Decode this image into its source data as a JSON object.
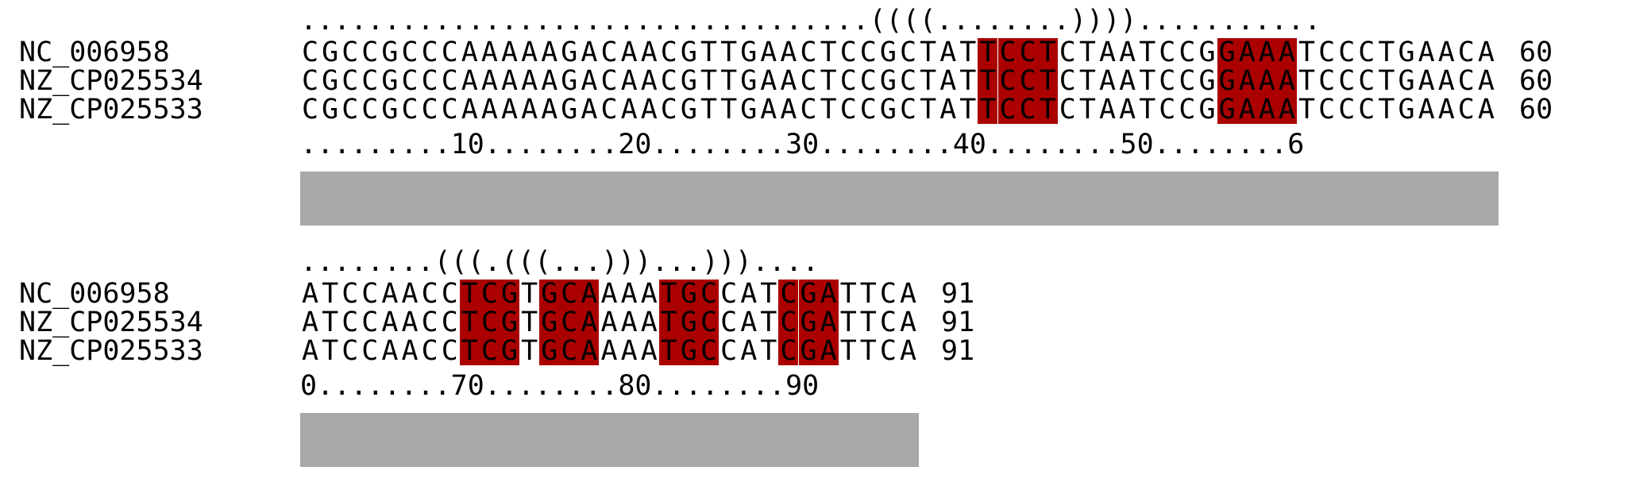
{
  "colors": {
    "highlight": "#aa0000",
    "conservation_bar": "#a8a8a8",
    "text": "#000000"
  },
  "blocks": [
    {
      "structure": "..................................((((........))))...........",
      "rows": [
        {
          "name": "NC_006958",
          "sequence": "CGCCGCCCAAAAAGACAACGTTGAACTCCGCTATTCCTCTAATCCGGAAATCCCTGAACA",
          "end": "60"
        },
        {
          "name": "NZ_CP025534",
          "sequence": "CGCCGCCCAAAAAGACAACGTTGAACTCCGCTATTCCTCTAATCCGGAAATCCCTGAACA",
          "end": "60"
        },
        {
          "name": "NZ_CP025533",
          "sequence": "CGCCGCCCAAAAAGACAACGTTGAACTCCGCTATTCCTCTAATCCGGAAATCCCTGAACA",
          "end": "60"
        }
      ],
      "ruler": ".........10........20........30........40........50........6",
      "highlight_ranges": [
        [
          34,
          37
        ],
        [
          46,
          49
        ]
      ]
    },
    {
      "structure": "........(((.(((...)))...)))....",
      "rows": [
        {
          "name": "NC_006958",
          "sequence": "ATCCAACCTCGTGCAAAATGCCATCGATTCA",
          "end": "91"
        },
        {
          "name": "NZ_CP025534",
          "sequence": "ATCCAACCTCGTGCAAAATGCCATCGATTCA",
          "end": "91"
        },
        {
          "name": "NZ_CP025533",
          "sequence": "ATCCAACCTCGTGCAAAATGCCATCGATTCA",
          "end": "91"
        }
      ],
      "ruler": "0........70........80........90",
      "highlight_ranges": [
        [
          8,
          10
        ],
        [
          12,
          14
        ],
        [
          18,
          20
        ],
        [
          24,
          26
        ]
      ]
    }
  ]
}
